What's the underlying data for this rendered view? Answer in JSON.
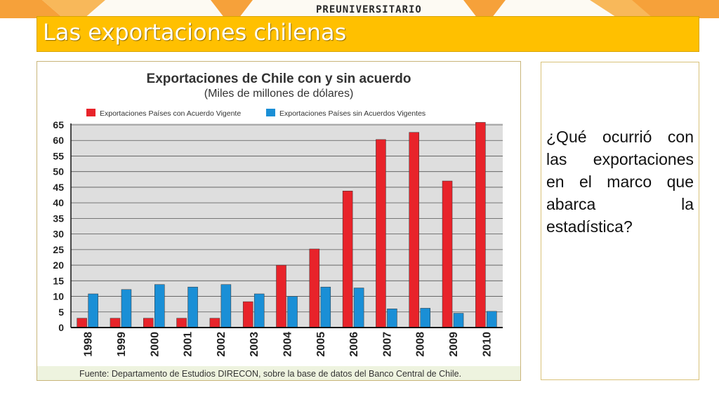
{
  "slide": {
    "brand": "PREUNIVERSITARIO",
    "title": "Las exportaciones chilenas",
    "question": "¿Qué ocurrió con las exportaciones en el marco que abarca la estadística?"
  },
  "colors": {
    "title_bar": "#ffc000",
    "series_with": "#e8232a",
    "series_without": "#1a8fd6"
  },
  "chart_data": {
    "type": "bar",
    "title": "Exportaciones de Chile con y sin acuerdo",
    "subtitle": "(Miles de millones de dólares)",
    "xlabel": "",
    "ylabel": "",
    "categories": [
      "1998",
      "1999",
      "2000",
      "2001",
      "2002",
      "2003",
      "2004",
      "2005",
      "2006",
      "2007",
      "2008",
      "2009",
      "2010"
    ],
    "series": [
      {
        "name": "Exportaciones Países con Acuerdo Vigente",
        "values": [
          3,
          3,
          3,
          3,
          3,
          8.3,
          20,
          25.2,
          43.8,
          60.3,
          62.6,
          47,
          65.8
        ]
      },
      {
        "name": "Exportaciones Países sin Acuerdos Vigentes",
        "values": [
          10.8,
          12.2,
          13.8,
          13,
          13.8,
          10.8,
          10,
          13,
          12.7,
          6,
          6.2,
          4.6,
          5.2
        ]
      }
    ],
    "yticks": [
      0,
      5,
      10,
      15,
      20,
      25,
      30,
      35,
      40,
      45,
      50,
      55,
      60,
      65
    ],
    "ylim": [
      0,
      65
    ],
    "grid": true,
    "legend": "top",
    "source": "Fuente: Departamento de Estudios DIRECON, sobre la base de datos del Banco Central de Chile."
  }
}
